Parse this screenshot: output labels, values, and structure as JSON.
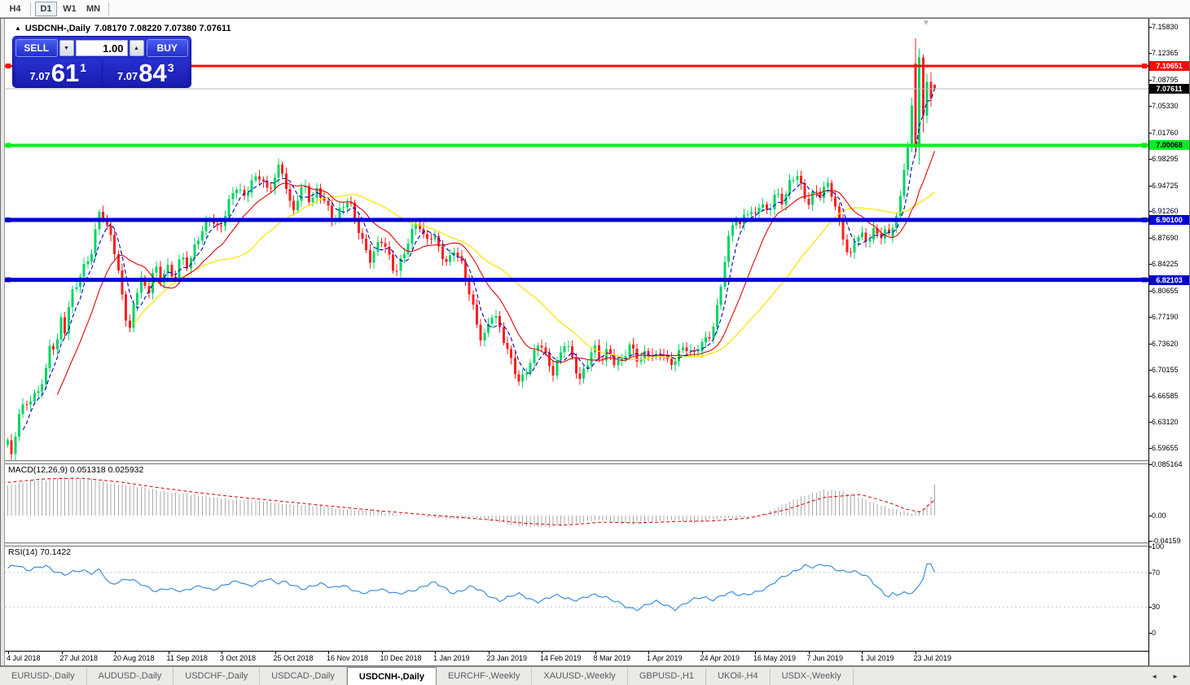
{
  "toolbar": {
    "periods": [
      {
        "label": "H4",
        "active": false
      },
      {
        "label": "D1",
        "active": true
      },
      {
        "label": "W1",
        "active": false
      },
      {
        "label": "MN",
        "active": false
      }
    ]
  },
  "chart": {
    "title_symbol": "USDCNH-,Daily",
    "title_ohlc": "7.08170 7.08220 7.07380 7.07611"
  },
  "icons": {
    "collapse": "▲",
    "scroll_to_end": "▼",
    "spin_down": "▼",
    "spin_up": "▲",
    "nav_left": "◄",
    "nav_right": "►"
  },
  "trade_panel": {
    "sell_label": "SELL",
    "buy_label": "BUY",
    "volume": "1.00",
    "sell_price": {
      "small": "7.07",
      "big": "61",
      "sup": "1"
    },
    "buy_price": {
      "small": "7.07",
      "big": "84",
      "sup": "3"
    }
  },
  "macd": {
    "label": "MACD(12,26,9) 0.051318 0.025932",
    "axis": [
      0.085164,
      0.0,
      -0.04159
    ]
  },
  "rsi": {
    "label": "RSI(14) 70.1422",
    "axis": [
      100,
      70,
      30,
      0
    ]
  },
  "price_axis": {
    "ticks": [
      7.1583,
      7.12365,
      7.08795,
      7.0533,
      7.0176,
      6.98295,
      6.94725,
      6.9126,
      6.8769,
      6.84225,
      6.80655,
      6.7719,
      6.7362,
      6.70155,
      6.66585,
      6.6312,
      6.59655
    ],
    "markers": [
      {
        "label": "7.10651",
        "price": 7.10651,
        "bg": "#fc0a0a",
        "fg": "#ffffff"
      },
      {
        "label": "7.07611",
        "price": 7.07611,
        "bg": "#000000",
        "fg": "#ffffff"
      },
      {
        "label": "7.00068",
        "price": 7.00068,
        "bg": "#00f01e",
        "fg": "#000000"
      },
      {
        "label": "6.90100",
        "price": 6.901,
        "bg": "#0202d6",
        "fg": "#ffffff"
      },
      {
        "label": "6.82103",
        "price": 6.82103,
        "bg": "#0202d6",
        "fg": "#ffffff"
      }
    ]
  },
  "date_axis": {
    "labels": [
      "4 Jul 2018",
      "27 Jul 2018",
      "20 Aug 2018",
      "11 Sep 2018",
      "3 Oct 2018",
      "25 Oct 2018",
      "16 Nov 2018",
      "10 Dec 2018",
      "1 Jan 2019",
      "23 Jan 2019",
      "14 Feb 2019",
      "8 Mar 2019",
      "1 Apr 2019",
      "24 Apr 2019",
      "16 May 2019",
      "7 Jun 2019",
      "1 Jul 2019",
      "23 Jul 2019"
    ]
  },
  "tabs": {
    "items": [
      {
        "label": "EURUSD-,Daily",
        "active": false
      },
      {
        "label": "AUDUSD-,Daily",
        "active": false
      },
      {
        "label": "USDCHF-,Daily",
        "active": false
      },
      {
        "label": "USDCAD-,Daily",
        "active": false
      },
      {
        "label": "USDCNH-,Daily",
        "active": true
      },
      {
        "label": "EURCHF-,Weekly",
        "active": false
      },
      {
        "label": "XAUUSD-,Weekly",
        "active": false
      },
      {
        "label": "GBPUSD-,H1",
        "active": false
      },
      {
        "label": "UKOil-,H4",
        "active": false
      },
      {
        "label": "USDX-,Weekly",
        "active": false
      }
    ]
  },
  "chart_data": {
    "type": "candlestick",
    "symbol": "USDCNH",
    "timeframe": "Daily",
    "last_ohlc": {
      "open": 7.0817,
      "high": 7.0822,
      "low": 7.0738,
      "close": 7.07611
    },
    "bid": 7.07611,
    "ask": 7.07843,
    "current_price": 7.07611,
    "spike_high": 7.1437,
    "levels": [
      {
        "price": 7.10651,
        "color": "#fc0a0a",
        "width": 3
      },
      {
        "price": 7.00068,
        "color": "#00f01e",
        "width": 4
      },
      {
        "price": 6.901,
        "color": "#0202d6",
        "width": 5
      },
      {
        "price": 6.82103,
        "color": "#0202d6",
        "width": 5
      }
    ],
    "colors": {
      "bull": "#00d464",
      "bear": "#fa1f1f",
      "ma_fast": "#0000be",
      "ma_mid": "#e00505",
      "ma_slow": "#ffe40a",
      "macd_hist": "#a8a8a8",
      "macd_signal": "#d40000",
      "rsi_line": "#3e8fd8",
      "current_line": "#bebebe"
    },
    "ma_windows": {
      "fast": 5,
      "mid": 14,
      "slow": 34
    },
    "y_axis_range": [
      6.5827,
      7.16521
    ],
    "price_path": [
      [
        0,
        6.607
      ],
      [
        0.004,
        6.582
      ],
      [
        0.012,
        6.64
      ],
      [
        0.022,
        6.658
      ],
      [
        0.032,
        6.672
      ],
      [
        0.042,
        6.705
      ],
      [
        0.047,
        6.748
      ],
      [
        0.052,
        6.716
      ],
      [
        0.056,
        6.775
      ],
      [
        0.061,
        6.745
      ],
      [
        0.068,
        6.798
      ],
      [
        0.075,
        6.818
      ],
      [
        0.083,
        6.843
      ],
      [
        0.091,
        6.862
      ],
      [
        0.1,
        6.92
      ],
      [
        0.105,
        6.893
      ],
      [
        0.113,
        6.872
      ],
      [
        0.119,
        6.833
      ],
      [
        0.125,
        6.788
      ],
      [
        0.131,
        6.754
      ],
      [
        0.138,
        6.802
      ],
      [
        0.144,
        6.826
      ],
      [
        0.151,
        6.796
      ],
      [
        0.158,
        6.84
      ],
      [
        0.165,
        6.815
      ],
      [
        0.171,
        6.843
      ],
      [
        0.179,
        6.822
      ],
      [
        0.187,
        6.856
      ],
      [
        0.195,
        6.838
      ],
      [
        0.203,
        6.868
      ],
      [
        0.211,
        6.886
      ],
      [
        0.219,
        6.905
      ],
      [
        0.228,
        6.888
      ],
      [
        0.237,
        6.922
      ],
      [
        0.246,
        6.946
      ],
      [
        0.255,
        6.928
      ],
      [
        0.264,
        6.952
      ],
      [
        0.273,
        6.962
      ],
      [
        0.281,
        6.94
      ],
      [
        0.287,
        6.958
      ],
      [
        0.294,
        6.975
      ],
      [
        0.3,
        6.945
      ],
      [
        0.307,
        6.905
      ],
      [
        0.313,
        6.93
      ],
      [
        0.32,
        6.95
      ],
      [
        0.327,
        6.925
      ],
      [
        0.334,
        6.945
      ],
      [
        0.344,
        6.92
      ],
      [
        0.352,
        6.895
      ],
      [
        0.36,
        6.915
      ],
      [
        0.368,
        6.93
      ],
      [
        0.376,
        6.9
      ],
      [
        0.384,
        6.87
      ],
      [
        0.392,
        6.845
      ],
      [
        0.402,
        6.875
      ],
      [
        0.41,
        6.855
      ],
      [
        0.418,
        6.83
      ],
      [
        0.426,
        6.855
      ],
      [
        0.434,
        6.88
      ],
      [
        0.442,
        6.9
      ],
      [
        0.45,
        6.87
      ],
      [
        0.459,
        6.88
      ],
      [
        0.466,
        6.862
      ],
      [
        0.474,
        6.845
      ],
      [
        0.482,
        6.865
      ],
      [
        0.49,
        6.84
      ],
      [
        0.498,
        6.8
      ],
      [
        0.506,
        6.762
      ],
      [
        0.512,
        6.735
      ],
      [
        0.517,
        6.76
      ],
      [
        0.524,
        6.782
      ],
      [
        0.531,
        6.758
      ],
      [
        0.538,
        6.73
      ],
      [
        0.545,
        6.705
      ],
      [
        0.552,
        6.68
      ],
      [
        0.56,
        6.7
      ],
      [
        0.567,
        6.722
      ],
      [
        0.574,
        6.745
      ],
      [
        0.581,
        6.718
      ],
      [
        0.588,
        6.695
      ],
      [
        0.595,
        6.715
      ],
      [
        0.602,
        6.738
      ],
      [
        0.61,
        6.712
      ],
      [
        0.617,
        6.69
      ],
      [
        0.625,
        6.712
      ],
      [
        0.632,
        6.735
      ],
      [
        0.64,
        6.71
      ],
      [
        0.648,
        6.725
      ],
      [
        0.656,
        6.705
      ],
      [
        0.664,
        6.72
      ],
      [
        0.672,
        6.738
      ],
      [
        0.681,
        6.712
      ],
      [
        0.69,
        6.725
      ],
      [
        0.698,
        6.712
      ],
      [
        0.706,
        6.728
      ],
      [
        0.714,
        6.708
      ],
      [
        0.722,
        6.722
      ],
      [
        0.73,
        6.735
      ],
      [
        0.739,
        6.718
      ],
      [
        0.748,
        6.732
      ],
      [
        0.754,
        6.742
      ],
      [
        0.76,
        6.752
      ],
      [
        0.766,
        6.79
      ],
      [
        0.772,
        6.838
      ],
      [
        0.778,
        6.878
      ],
      [
        0.784,
        6.905
      ],
      [
        0.79,
        6.888
      ],
      [
        0.796,
        6.912
      ],
      [
        0.805,
        6.905
      ],
      [
        0.812,
        6.928
      ],
      [
        0.82,
        6.912
      ],
      [
        0.828,
        6.938
      ],
      [
        0.836,
        6.922
      ],
      [
        0.844,
        6.948
      ],
      [
        0.852,
        6.962
      ],
      [
        0.858,
        6.938
      ],
      [
        0.863,
        6.925
      ],
      [
        0.87,
        6.942
      ],
      [
        0.877,
        6.935
      ],
      [
        0.884,
        6.948
      ],
      [
        0.89,
        6.93
      ],
      [
        0.896,
        6.9
      ],
      [
        0.902,
        6.875
      ],
      [
        0.908,
        6.848
      ],
      [
        0.914,
        6.88
      ],
      [
        0.92,
        6.885
      ],
      [
        0.927,
        6.872
      ],
      [
        0.934,
        6.884
      ],
      [
        0.941,
        6.876
      ],
      [
        0.948,
        6.886
      ],
      [
        0.955,
        6.874
      ],
      [
        0.962,
        6.886
      ],
      [
        0.97,
        6.878
      ],
      [
        0.978,
        6.888
      ],
      [
        1,
        6.888
      ]
    ],
    "final_bars": [
      [
        6.878,
        6.895,
        6.87,
        6.89
      ],
      [
        6.89,
        6.91,
        6.884,
        6.906
      ],
      [
        6.906,
        6.94,
        6.9,
        6.933
      ],
      [
        6.933,
        6.976,
        6.928,
        6.968
      ],
      [
        6.968,
        7.006,
        6.96,
        6.998
      ],
      [
        6.998,
        7.064,
        6.992,
        7.054
      ],
      [
        7.11,
        7.1437,
        6.988,
        6.998
      ],
      [
        6.998,
        7.13,
        6.975,
        7.118
      ],
      [
        7.118,
        7.122,
        7.018,
        7.04
      ],
      [
        7.04,
        7.096,
        7.03,
        7.0855
      ],
      [
        7.0855,
        7.098,
        7.052,
        7.063
      ],
      [
        7.0817,
        7.0822,
        7.0738,
        7.0761
      ]
    ],
    "macd_range": [
      -0.04159,
      0.085164
    ],
    "macd_path": [
      [
        0,
        0.05
      ],
      [
        0.03,
        0.058
      ],
      [
        0.06,
        0.064
      ],
      [
        0.09,
        0.06
      ],
      [
        0.12,
        0.052
      ],
      [
        0.15,
        0.045
      ],
      [
        0.18,
        0.038
      ],
      [
        0.21,
        0.032
      ],
      [
        0.24,
        0.028
      ],
      [
        0.27,
        0.024
      ],
      [
        0.3,
        0.02
      ],
      [
        0.33,
        0.016
      ],
      [
        0.36,
        0.012
      ],
      [
        0.39,
        0.008
      ],
      [
        0.42,
        0.004
      ],
      [
        0.44,
        0.001
      ],
      [
        0.46,
        -0.004
      ],
      [
        0.48,
        -0.006
      ],
      [
        0.5,
        -0.004
      ],
      [
        0.52,
        -0.008
      ],
      [
        0.54,
        -0.014
      ],
      [
        0.56,
        -0.018
      ],
      [
        0.58,
        -0.02
      ],
      [
        0.6,
        -0.016
      ],
      [
        0.62,
        -0.01
      ],
      [
        0.64,
        -0.008
      ],
      [
        0.66,
        -0.012
      ],
      [
        0.68,
        -0.014
      ],
      [
        0.7,
        -0.01
      ],
      [
        0.72,
        -0.008
      ],
      [
        0.74,
        -0.01
      ],
      [
        0.76,
        -0.007
      ],
      [
        0.78,
        -0.005
      ],
      [
        0.8,
        -0.002
      ],
      [
        0.82,
        0.005
      ],
      [
        0.84,
        0.02
      ],
      [
        0.86,
        0.034
      ],
      [
        0.88,
        0.043
      ],
      [
        0.9,
        0.04
      ],
      [
        0.92,
        0.03
      ],
      [
        0.94,
        0.018
      ],
      [
        0.96,
        0.008
      ],
      [
        0.975,
        0.004
      ],
      [
        0.985,
        0.008
      ],
      [
        0.993,
        0.02
      ],
      [
        1,
        0.051318
      ]
    ],
    "macd_signal_path": [
      [
        0,
        0.055
      ],
      [
        0.04,
        0.061
      ],
      [
        0.08,
        0.062
      ],
      [
        0.12,
        0.056
      ],
      [
        0.16,
        0.047
      ],
      [
        0.2,
        0.039
      ],
      [
        0.24,
        0.032
      ],
      [
        0.28,
        0.026
      ],
      [
        0.32,
        0.02
      ],
      [
        0.36,
        0.014
      ],
      [
        0.4,
        0.008
      ],
      [
        0.44,
        0.003
      ],
      [
        0.48,
        -0.002
      ],
      [
        0.52,
        -0.007
      ],
      [
        0.56,
        -0.013
      ],
      [
        0.6,
        -0.016
      ],
      [
        0.64,
        -0.011
      ],
      [
        0.68,
        -0.012
      ],
      [
        0.72,
        -0.01
      ],
      [
        0.76,
        -0.009
      ],
      [
        0.8,
        -0.004
      ],
      [
        0.84,
        0.01
      ],
      [
        0.88,
        0.03
      ],
      [
        0.92,
        0.035
      ],
      [
        0.95,
        0.022
      ],
      [
        0.97,
        0.01
      ],
      [
        0.985,
        0.006
      ],
      [
        1,
        0.025932
      ]
    ],
    "rsi_levels": [
      70,
      30
    ],
    "rsi_path": [
      [
        0,
        75
      ],
      [
        0.01,
        78
      ],
      [
        0.02,
        72
      ],
      [
        0.03,
        76
      ],
      [
        0.04,
        79
      ],
      [
        0.05,
        71
      ],
      [
        0.06,
        66
      ],
      [
        0.07,
        71
      ],
      [
        0.08,
        74
      ],
      [
        0.09,
        69
      ],
      [
        0.1,
        72
      ],
      [
        0.11,
        55
      ],
      [
        0.12,
        60
      ],
      [
        0.13,
        64
      ],
      [
        0.14,
        58
      ],
      [
        0.15,
        52
      ],
      [
        0.16,
        48
      ],
      [
        0.17,
        53
      ],
      [
        0.18,
        50
      ],
      [
        0.19,
        47
      ],
      [
        0.2,
        52
      ],
      [
        0.21,
        55
      ],
      [
        0.22,
        50
      ],
      [
        0.23,
        53
      ],
      [
        0.24,
        57
      ],
      [
        0.25,
        60
      ],
      [
        0.26,
        55
      ],
      [
        0.27,
        58
      ],
      [
        0.28,
        62
      ],
      [
        0.29,
        57
      ],
      [
        0.3,
        60
      ],
      [
        0.31,
        55
      ],
      [
        0.32,
        50
      ],
      [
        0.33,
        54
      ],
      [
        0.34,
        57
      ],
      [
        0.35,
        53
      ],
      [
        0.36,
        56
      ],
      [
        0.37,
        50
      ],
      [
        0.38,
        45
      ],
      [
        0.39,
        48
      ],
      [
        0.4,
        52
      ],
      [
        0.41,
        48
      ],
      [
        0.42,
        44
      ],
      [
        0.43,
        47
      ],
      [
        0.44,
        51
      ],
      [
        0.45,
        55
      ],
      [
        0.46,
        58
      ],
      [
        0.47,
        52
      ],
      [
        0.48,
        46
      ],
      [
        0.49,
        50
      ],
      [
        0.5,
        54
      ],
      [
        0.51,
        48
      ],
      [
        0.52,
        42
      ],
      [
        0.53,
        38
      ],
      [
        0.54,
        42
      ],
      [
        0.55,
        45
      ],
      [
        0.56,
        40
      ],
      [
        0.57,
        36
      ],
      [
        0.58,
        40
      ],
      [
        0.59,
        44
      ],
      [
        0.6,
        40
      ],
      [
        0.61,
        37
      ],
      [
        0.62,
        41
      ],
      [
        0.63,
        45
      ],
      [
        0.64,
        42
      ],
      [
        0.65,
        38
      ],
      [
        0.66,
        35
      ],
      [
        0.67,
        30
      ],
      [
        0.68,
        27
      ],
      [
        0.69,
        32
      ],
      [
        0.7,
        36
      ],
      [
        0.71,
        33
      ],
      [
        0.72,
        28
      ],
      [
        0.73,
        33
      ],
      [
        0.74,
        38
      ],
      [
        0.75,
        42
      ],
      [
        0.76,
        39
      ],
      [
        0.77,
        43
      ],
      [
        0.78,
        46
      ],
      [
        0.79,
        43
      ],
      [
        0.8,
        46
      ],
      [
        0.81,
        49
      ],
      [
        0.82,
        52
      ],
      [
        0.83,
        60
      ],
      [
        0.84,
        67
      ],
      [
        0.85,
        73
      ],
      [
        0.86,
        78
      ],
      [
        0.87,
        75
      ],
      [
        0.88,
        79
      ],
      [
        0.89,
        76
      ],
      [
        0.9,
        72
      ],
      [
        0.91,
        71
      ],
      [
        0.92,
        68
      ],
      [
        0.93,
        63
      ],
      [
        0.94,
        52
      ],
      [
        0.95,
        42
      ],
      [
        0.955,
        45
      ],
      [
        0.96,
        43
      ],
      [
        0.965,
        46
      ],
      [
        0.97,
        44
      ],
      [
        0.975,
        47
      ],
      [
        0.98,
        50
      ],
      [
        0.985,
        58
      ],
      [
        0.99,
        72
      ],
      [
        0.994,
        90
      ],
      [
        0.997,
        74
      ],
      [
        1,
        70.1422
      ]
    ]
  }
}
